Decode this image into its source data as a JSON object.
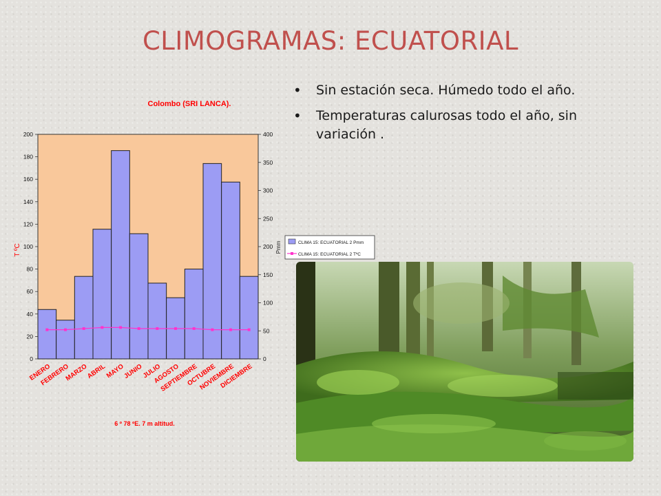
{
  "slide": {
    "title": "CLIMOGRAMAS: ECUATORIAL",
    "bullets": [
      "Sin estación seca.  Húmedo todo el año.",
      "Temperaturas calurosas todo el año, sin variación ."
    ]
  },
  "photo": {
    "subject": "forest-photo"
  },
  "colors": {
    "title": "#c0504d",
    "plot_bg": "#f9c89b",
    "bars": "#9c9cf4",
    "temp_line": "#ff33cc",
    "chart_text": "#ff0000"
  },
  "chart_data": {
    "type": "bar",
    "title": "Colombo (SRI LANCA).",
    "subtitle": "6 º 78 ºE.    7 m altitud.",
    "categories": [
      "ENERO",
      "FEBRERO",
      "MARZO",
      "ABRIL",
      "MAYO",
      "JUNIO",
      "JULIO",
      "AGOSTO",
      "SEPTIEMBRE",
      "OCTUBRE",
      "NOVIEMBRE",
      "DICIEMBRE"
    ],
    "series": [
      {
        "name": "CLIMA 15: ECUATORIAL 2 Pmm",
        "type": "bar",
        "axis": "right",
        "values": [
          88,
          69,
          147,
          231,
          371,
          223,
          135,
          109,
          160,
          348,
          315,
          147
        ]
      },
      {
        "name": "CLIMA 15: ECUATORIAL 2 TºC",
        "type": "line",
        "axis": "left",
        "values": [
          26,
          26,
          27,
          28,
          28,
          27,
          27,
          27,
          27,
          26,
          26,
          26
        ]
      }
    ],
    "ylabel_left": "T ºC",
    "ylabel_right": "Pmm",
    "ylim_left": [
      0,
      200
    ],
    "yticks_left": [
      "0",
      "20",
      "40",
      "60",
      "80",
      "100",
      "120",
      "140",
      "160",
      "180",
      "200"
    ],
    "ylim_right": [
      0,
      400
    ],
    "yticks_right": [
      "0",
      "50",
      "100",
      "150",
      "200",
      "250",
      "300",
      "350",
      "400"
    ],
    "legend_position": "right",
    "grid": false
  }
}
